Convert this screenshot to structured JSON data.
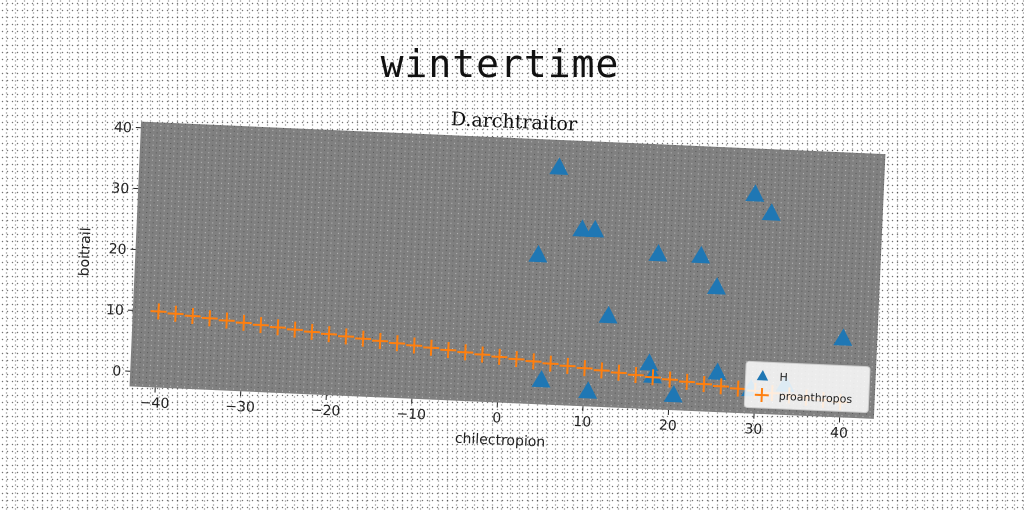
{
  "suptitle": "wintertime",
  "colors": {
    "plot_background": "#808080",
    "series_1": "#1f77b4",
    "series_2": "#ff7f0e"
  },
  "chart_data": {
    "type": "scatter",
    "title": "D.archtraitor",
    "xlabel": "chilectropion",
    "ylabel": "boitrail",
    "xlim": [
      -43,
      44
    ],
    "ylim": [
      -2.5,
      41
    ],
    "xticks": [
      -40,
      -30,
      -20,
      -10,
      0,
      10,
      20,
      30,
      40
    ],
    "yticks": [
      0,
      10,
      20,
      30,
      40
    ],
    "grid": false,
    "legend_position": "lower-right",
    "series": [
      {
        "name": "H",
        "marker": "triangle",
        "color": "#1f77b4",
        "points": [
          [
            6,
            36.5
          ],
          [
            29,
            33.5
          ],
          [
            31,
            30.5
          ],
          [
            9,
            26.5
          ],
          [
            10.5,
            26.5
          ],
          [
            4,
            22
          ],
          [
            18,
            23
          ],
          [
            23,
            23
          ],
          [
            25,
            18
          ],
          [
            12.5,
            12.5
          ],
          [
            40,
            10.5
          ],
          [
            17.5,
            5
          ],
          [
            18,
            3
          ],
          [
            25.5,
            4
          ],
          [
            33.5,
            2.5
          ],
          [
            29.5,
            1.5
          ],
          [
            5,
            1.5
          ],
          [
            10.5,
            0
          ],
          [
            20.5,
            0
          ]
        ]
      },
      {
        "name": "proanthropos",
        "marker": "plus",
        "color": "#ff7f0e",
        "x_start": -40,
        "x_end": 40,
        "x_step": 2,
        "slope": -0.125,
        "intercept": 5
      }
    ]
  }
}
